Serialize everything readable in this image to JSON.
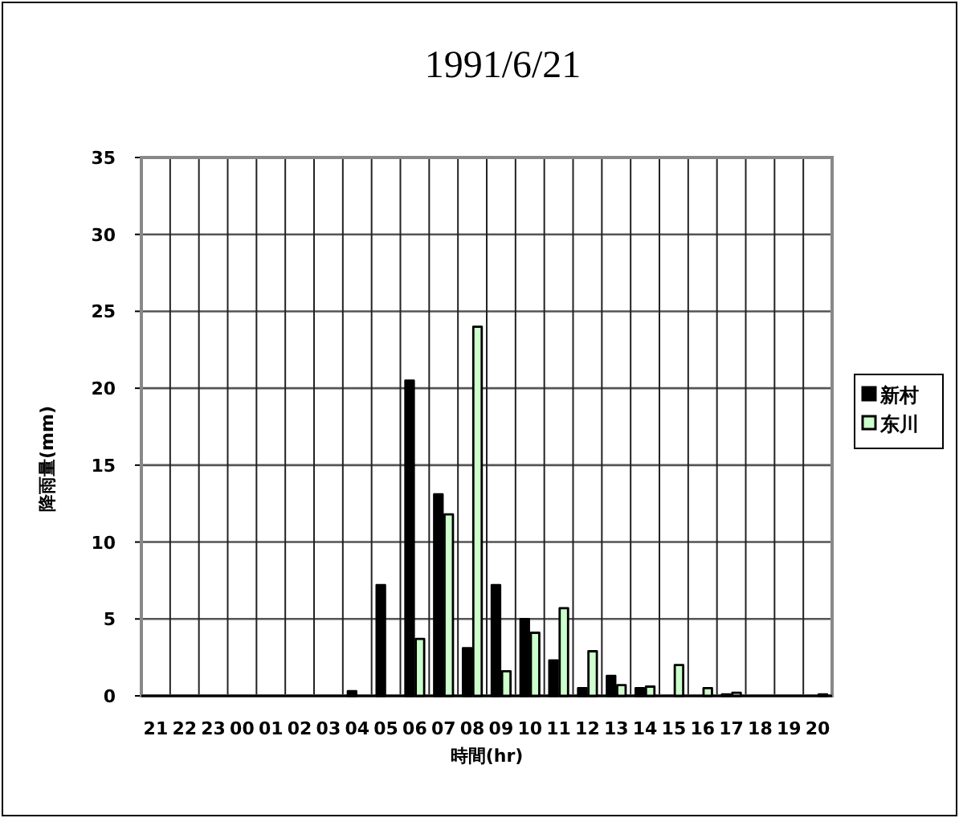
{
  "chart_data": {
    "type": "bar",
    "title": "1991/6/21",
    "xlabel": "時間(hr)",
    "ylabel": "降雨量(mm)",
    "categories": [
      "21",
      "22",
      "23",
      "00",
      "01",
      "02",
      "03",
      "04",
      "05",
      "06",
      "07",
      "08",
      "09",
      "10",
      "11",
      "12",
      "13",
      "14",
      "15",
      "16",
      "17",
      "18",
      "19",
      "20"
    ],
    "series": [
      {
        "name": "新村",
        "color": "#000000",
        "values": [
          0,
          0,
          0,
          0,
          0,
          0,
          0,
          0.3,
          7.2,
          20.5,
          13.1,
          3.1,
          7.2,
          5.0,
          2.3,
          0.5,
          1.3,
          0.5,
          0,
          0,
          0.1,
          0,
          0,
          0
        ]
      },
      {
        "name": "东川",
        "color": "#ccffcc",
        "values": [
          0,
          0,
          0,
          0,
          0,
          0,
          0,
          0,
          0,
          3.7,
          11.8,
          24.0,
          1.6,
          4.1,
          5.7,
          2.9,
          0.7,
          0.6,
          2.0,
          0.5,
          0.2,
          0,
          0,
          0.1
        ]
      }
    ],
    "ylim": [
      0,
      35
    ],
    "yticks": [
      0,
      5,
      10,
      15,
      20,
      25,
      30,
      35
    ],
    "grid": true,
    "legend": "right"
  }
}
